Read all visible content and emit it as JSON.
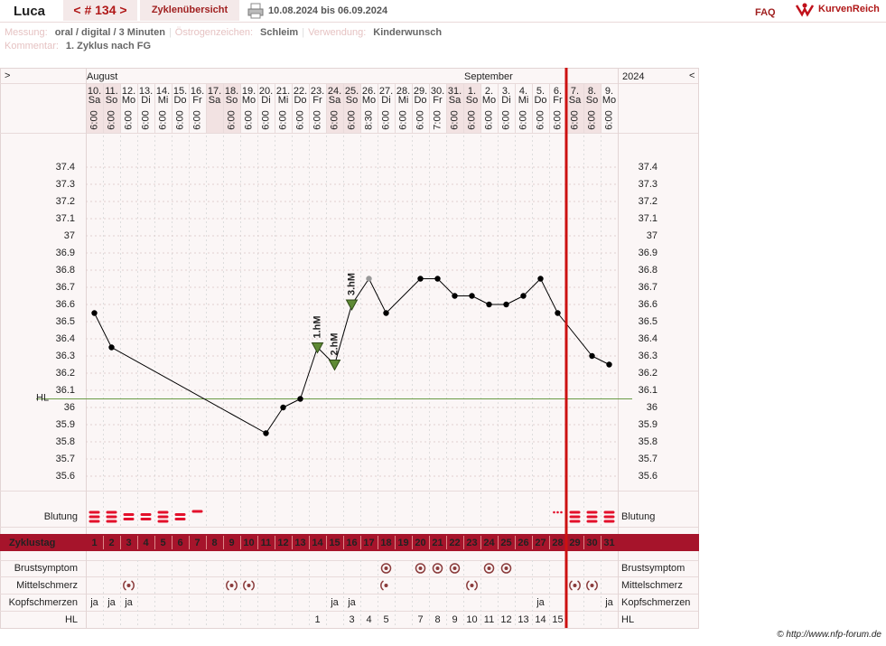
{
  "header": {
    "name": "Luca",
    "cycle": "< # 134 >",
    "overview": "Zyklenübersicht",
    "range": "10.08.2024 bis 06.09.2024",
    "faq": "FAQ",
    "logo": "KurvenReich"
  },
  "meta": {
    "fields": [
      {
        "label": "Messung:",
        "value": "oral / digital / 3 Minuten"
      },
      {
        "label": "Östrogenzeichen:",
        "value": "Schleim"
      },
      {
        "label": "Verwendung:",
        "value": "Kinderwunsch"
      }
    ],
    "separator": "|",
    "comment": {
      "label": "Kommentar:",
      "value": "1. Zyklus nach FG"
    }
  },
  "footer": "© http://www.nfp-forum.de",
  "chart_data": {
    "type": "line",
    "nav_left": ">",
    "nav_right": "<",
    "months": [
      "August",
      "September"
    ],
    "year": "2024",
    "dates": [
      "10.",
      "11.",
      "12.",
      "13.",
      "14.",
      "15.",
      "16.",
      "17.",
      "18.",
      "19.",
      "20.",
      "21.",
      "22.",
      "23.",
      "24.",
      "25.",
      "26.",
      "27.",
      "28.",
      "29.",
      "30.",
      "31.",
      "1.",
      "2.",
      "3.",
      "4.",
      "5.",
      "6.",
      "7.",
      "8.",
      "9."
    ],
    "weekdays": [
      "Sa",
      "So",
      "Mo",
      "Di",
      "Mi",
      "Do",
      "Fr",
      "Sa",
      "So",
      "Mo",
      "Di",
      "Mi",
      "Do",
      "Fr",
      "Sa",
      "So",
      "Mo",
      "Di",
      "Mi",
      "Do",
      "Fr",
      "Sa",
      "So",
      "Mo",
      "Di",
      "Mi",
      "Do",
      "Fr",
      "Sa",
      "So",
      "Mo"
    ],
    "times": [
      "6:00",
      "6:00",
      "6:00",
      "6:00",
      "6:00",
      "6:00",
      "6:00",
      null,
      "6:00",
      "6:00",
      "6:00",
      "6:00",
      "6:00",
      "6:00",
      "6:00",
      "6:00",
      "8:30",
      "6:00",
      "6:00",
      "6:00",
      "7:00",
      "6:00",
      "6:00",
      "6:00",
      "6:00",
      "6:00",
      "6:00",
      "6:00",
      "6:00",
      "6:00",
      "6:00"
    ],
    "values": [
      36.55,
      36.35,
      null,
      null,
      null,
      null,
      null,
      null,
      null,
      null,
      35.85,
      36.0,
      36.05,
      36.35,
      36.25,
      36.6,
      36.75,
      36.55,
      null,
      36.75,
      36.75,
      36.65,
      36.65,
      36.6,
      36.6,
      36.65,
      36.75,
      36.55,
      null,
      36.3,
      36.25
    ],
    "color": "#000000",
    "excluded_color": "#999999",
    "point_styles": [
      "dot",
      "dot",
      "dot",
      "dot",
      "dot",
      "dot",
      "dot",
      "dot",
      "dot",
      "dot",
      "dot",
      "dot",
      "dot",
      "triangle",
      "triangle",
      "triangle",
      "excluded",
      "dot",
      "dot",
      "dot",
      "dot",
      "dot",
      "dot",
      "dot",
      "dot",
      "dot",
      "dot",
      "dot",
      "dot",
      "dot",
      "dot"
    ],
    "annotations": [
      null,
      null,
      null,
      null,
      null,
      null,
      null,
      null,
      null,
      null,
      null,
      null,
      null,
      "1.hM",
      "2.hM",
      "3.hM",
      null,
      null,
      null,
      null,
      null,
      null,
      null,
      null,
      null,
      null,
      null,
      null,
      null,
      null,
      null
    ],
    "annotation_color": "#5f8a35",
    "ylim": [
      35.5,
      37.5
    ],
    "yticks": [
      35.6,
      35.7,
      35.8,
      35.9,
      36,
      36.1,
      36.2,
      36.3,
      36.4,
      36.5,
      36.6,
      36.7,
      36.8,
      36.9,
      37,
      37.1,
      37.2,
      37.3,
      37.4
    ],
    "grid": true,
    "hl": {
      "label": "HL",
      "value": 36.05,
      "color": "#6a9a45"
    },
    "divider": {
      "after_day": 28,
      "color": "#cc1111"
    },
    "bleeding": {
      "label": "Blutung",
      "color": "#e3102b",
      "values": [
        3,
        3,
        2,
        2,
        3,
        2,
        1,
        null,
        null,
        null,
        null,
        null,
        null,
        null,
        null,
        null,
        null,
        null,
        null,
        null,
        null,
        null,
        null,
        null,
        null,
        null,
        null,
        0,
        3,
        3,
        3
      ]
    },
    "cycle_days": {
      "label": "Zyklustag",
      "color": "#a6142b",
      "values": [
        1,
        2,
        3,
        4,
        5,
        6,
        7,
        8,
        9,
        10,
        11,
        12,
        13,
        14,
        15,
        16,
        17,
        18,
        19,
        20,
        21,
        22,
        23,
        24,
        25,
        26,
        27,
        28,
        29,
        30,
        31
      ]
    },
    "symptoms": [
      {
        "label": "Brustsymptom",
        "values": [
          null,
          null,
          null,
          null,
          null,
          null,
          null,
          null,
          null,
          null,
          null,
          null,
          null,
          null,
          null,
          null,
          null,
          1,
          null,
          1,
          1,
          1,
          null,
          1,
          1,
          null,
          null,
          null,
          null,
          null,
          null
        ]
      },
      {
        "label": "Mittelschmerz",
        "values": [
          null,
          null,
          2,
          null,
          null,
          null,
          null,
          null,
          2,
          2,
          null,
          null,
          null,
          null,
          null,
          null,
          null,
          1,
          null,
          null,
          null,
          null,
          2,
          null,
          null,
          null,
          null,
          null,
          2,
          2,
          null
        ]
      },
      {
        "label": "Kopfschmerzen",
        "values": [
          "ja",
          "ja",
          "ja",
          null,
          null,
          null,
          null,
          null,
          null,
          null,
          null,
          null,
          null,
          null,
          "ja",
          "ja",
          null,
          null,
          null,
          null,
          null,
          null,
          null,
          null,
          null,
          null,
          "ja",
          null,
          null,
          null,
          "ja"
        ]
      },
      {
        "label": "HL",
        "values": [
          null,
          null,
          null,
          null,
          null,
          null,
          null,
          null,
          null,
          null,
          null,
          null,
          null,
          1,
          null,
          3,
          4,
          5,
          null,
          7,
          8,
          9,
          10,
          11,
          12,
          13,
          14,
          15,
          null,
          null,
          null
        ]
      }
    ]
  }
}
